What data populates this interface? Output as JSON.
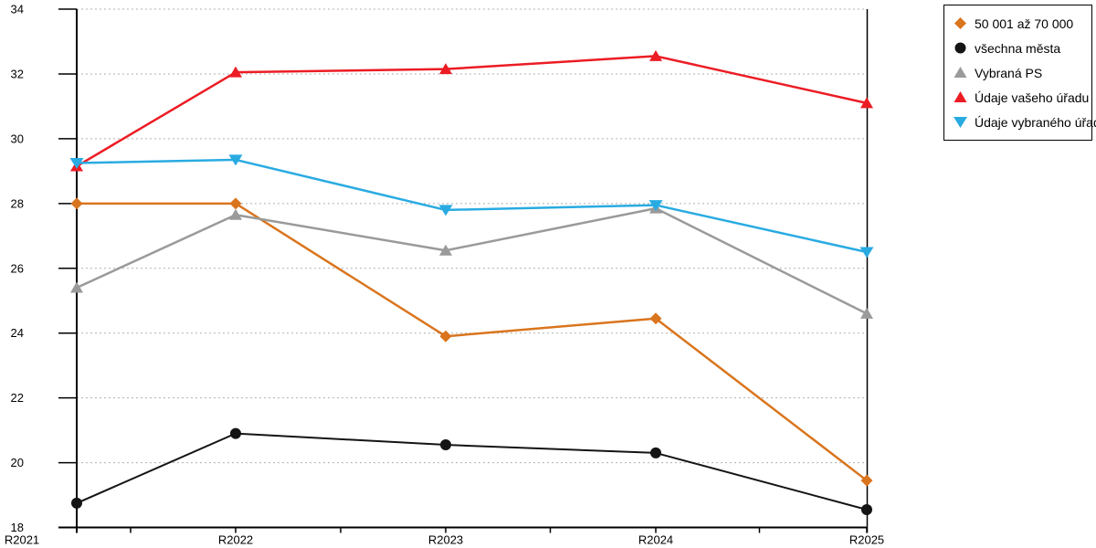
{
  "chart_data": {
    "type": "line",
    "title": "",
    "xlabel": "",
    "ylabel": "",
    "categories": [
      "R2021",
      "R2022",
      "R2023",
      "R2024",
      "R2025"
    ],
    "series": [
      {
        "name": "50 001 až 70 000",
        "marker": "diamond",
        "color": "#d9751e",
        "values": [
          28.0,
          28.0,
          23.9,
          24.45,
          19.45
        ]
      },
      {
        "name": "všechna města",
        "marker": "circle",
        "color": "#141414",
        "values": [
          18.75,
          20.9,
          20.55,
          20.3,
          18.55
        ]
      },
      {
        "name": "Vybraná PS",
        "marker": "triangle-up",
        "color": "#9a9a9a",
        "values": [
          25.4,
          27.65,
          26.55,
          27.85,
          24.6
        ]
      },
      {
        "name": "Údaje vašeho úřadu",
        "marker": "triangle-up",
        "color": "#ec1c24",
        "values": [
          29.15,
          32.05,
          32.15,
          32.55,
          31.1
        ]
      },
      {
        "name": "Údaje vybraného úřadu",
        "marker": "triangle-down",
        "color": "#29abe2",
        "values": [
          29.25,
          29.35,
          27.8,
          27.95,
          26.5
        ]
      }
    ],
    "y_axis": {
      "min": 18,
      "max": 34,
      "tick_step": 2,
      "tick_labels": [
        "18",
        "20",
        "22",
        "24",
        "26",
        "28",
        "30",
        "32",
        "34"
      ]
    },
    "x_axis": {
      "tick_labels": [
        "R2021",
        "R2022",
        "R2023",
        "R2024",
        "R2025"
      ]
    },
    "grid": {
      "horizontal": true,
      "style": "dotted",
      "color": "#b0b0b0"
    },
    "legend_position": "top-right",
    "axis_color": "#000000",
    "background_color": "#ffffff"
  }
}
